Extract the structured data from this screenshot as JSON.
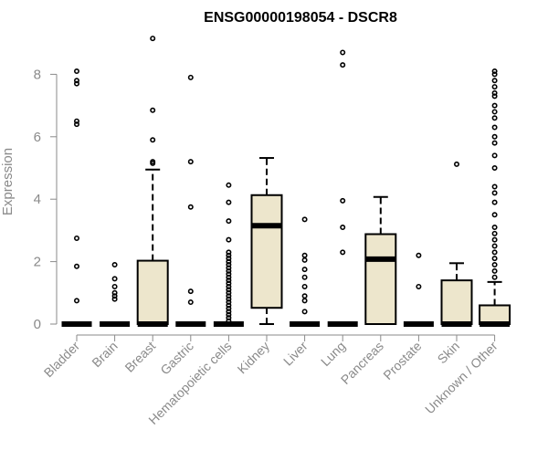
{
  "chart_data": {
    "type": "boxplot",
    "title": "ENSG00000198054 - DSCR8",
    "ylabel": "Expression",
    "xlabel": "",
    "ylim": [
      0,
      9.3
    ],
    "yticks": [
      0,
      2,
      4,
      6,
      8
    ],
    "grid": false,
    "colors": {
      "box_fill": "#ede6cc",
      "stroke": "#000000",
      "axis": "#8a8a8a"
    },
    "categories": [
      "Bladder",
      "Brain",
      "Breast",
      "Gastric",
      "Hematopoietic cells",
      "Kidney",
      "Liver",
      "Lung",
      "Pancreas",
      "Prostate",
      "Skin",
      "Unknown / Other"
    ],
    "boxes": [
      {
        "category": "Bladder",
        "min": 0,
        "q1": 0,
        "median": 0,
        "q3": 0,
        "max": 0,
        "outliers": [
          0.75,
          1.85,
          2.75,
          6.4,
          6.5,
          7.7,
          7.8,
          8.1
        ]
      },
      {
        "category": "Brain",
        "min": 0,
        "q1": 0,
        "median": 0,
        "q3": 0,
        "max": 0,
        "outliers": [
          0.8,
          0.9,
          1.0,
          1.2,
          1.45,
          1.9
        ]
      },
      {
        "category": "Breast",
        "min": 0,
        "q1": 0,
        "median": 0,
        "q3": 2.03,
        "max": 4.95,
        "outliers": [
          5.15,
          5.2,
          5.9,
          6.85,
          9.15
        ]
      },
      {
        "category": "Gastric",
        "min": 0,
        "q1": 0,
        "median": 0,
        "q3": 0,
        "max": 0,
        "outliers": [
          0.7,
          1.05,
          3.75,
          5.2,
          7.9
        ]
      },
      {
        "category": "Hematopoietic cells",
        "min": 0,
        "q1": 0,
        "median": 0,
        "q3": 0,
        "max": 0,
        "outliers": [
          0.1,
          0.2,
          0.3,
          0.4,
          0.5,
          0.6,
          0.7,
          0.8,
          0.9,
          1.0,
          1.1,
          1.2,
          1.3,
          1.4,
          1.5,
          1.6,
          1.7,
          1.8,
          1.9,
          2.0,
          2.1,
          2.2,
          2.3,
          2.7,
          3.3,
          3.9,
          4.45
        ]
      },
      {
        "category": "Kidney",
        "min": 0,
        "q1": 0.52,
        "median": 3.15,
        "q3": 4.13,
        "max": 5.32,
        "outliers": []
      },
      {
        "category": "Liver",
        "min": 0,
        "q1": 0,
        "median": 0,
        "q3": 0,
        "max": 0,
        "outliers": [
          0.4,
          0.75,
          0.9,
          1.2,
          1.5,
          1.75,
          2.05,
          2.2,
          3.35
        ]
      },
      {
        "category": "Lung",
        "min": 0,
        "q1": 0,
        "median": 0,
        "q3": 0,
        "max": 0,
        "outliers": [
          2.3,
          3.1,
          3.95,
          8.3,
          8.7
        ]
      },
      {
        "category": "Pancreas",
        "min": 0,
        "q1": 0,
        "median": 2.08,
        "q3": 2.88,
        "max": 4.07,
        "outliers": []
      },
      {
        "category": "Prostate",
        "min": 0,
        "q1": 0,
        "median": 0,
        "q3": 0,
        "max": 0,
        "outliers": [
          1.2,
          2.2
        ]
      },
      {
        "category": "Skin",
        "min": 0,
        "q1": 0,
        "median": 0,
        "q3": 1.4,
        "max": 1.95,
        "outliers": [
          5.12
        ]
      },
      {
        "category": "Unknown / Other",
        "min": 0,
        "q1": 0,
        "median": 0,
        "q3": 0.6,
        "max": 1.35,
        "outliers": [
          1.5,
          1.7,
          1.9,
          2.1,
          2.3,
          2.5,
          2.7,
          2.9,
          3.1,
          3.5,
          3.9,
          4.2,
          4.4,
          5.0,
          5.4,
          5.8,
          6.0,
          6.3,
          6.6,
          6.8,
          7.0,
          7.3,
          7.4,
          7.6,
          7.8,
          8.0,
          8.1
        ]
      }
    ]
  }
}
